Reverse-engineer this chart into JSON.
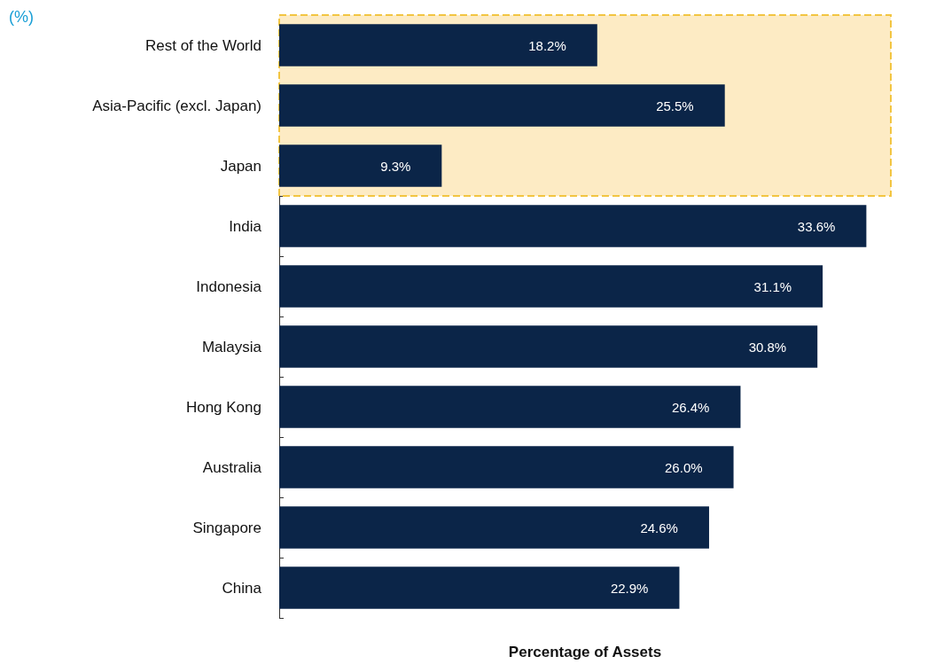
{
  "chart_data": {
    "type": "bar",
    "orientation": "horizontal",
    "xlabel": "Percentage of Assets",
    "ylabel": "(%)",
    "categories": [
      "Rest of the World",
      "Asia-Pacific (excl. Japan)",
      "Japan",
      "India",
      "Indonesia",
      "Malaysia",
      "Hong Kong",
      "Australia",
      "Singapore",
      "China"
    ],
    "values": [
      18.2,
      25.5,
      9.3,
      33.6,
      31.1,
      30.8,
      26.4,
      26.0,
      24.6,
      22.9
    ],
    "value_labels": [
      "18.2%",
      "25.5%",
      "9.3%",
      "33.6%",
      "31.1%",
      "30.8%",
      "26.4%",
      "26.0%",
      "24.6%",
      "22.9%"
    ],
    "color": "#0b2548",
    "bands": [
      {
        "axis": "y",
        "from": "Rest of the World",
        "to": "Japan",
        "color": "#fdebc4"
      }
    ],
    "grid": false
  }
}
